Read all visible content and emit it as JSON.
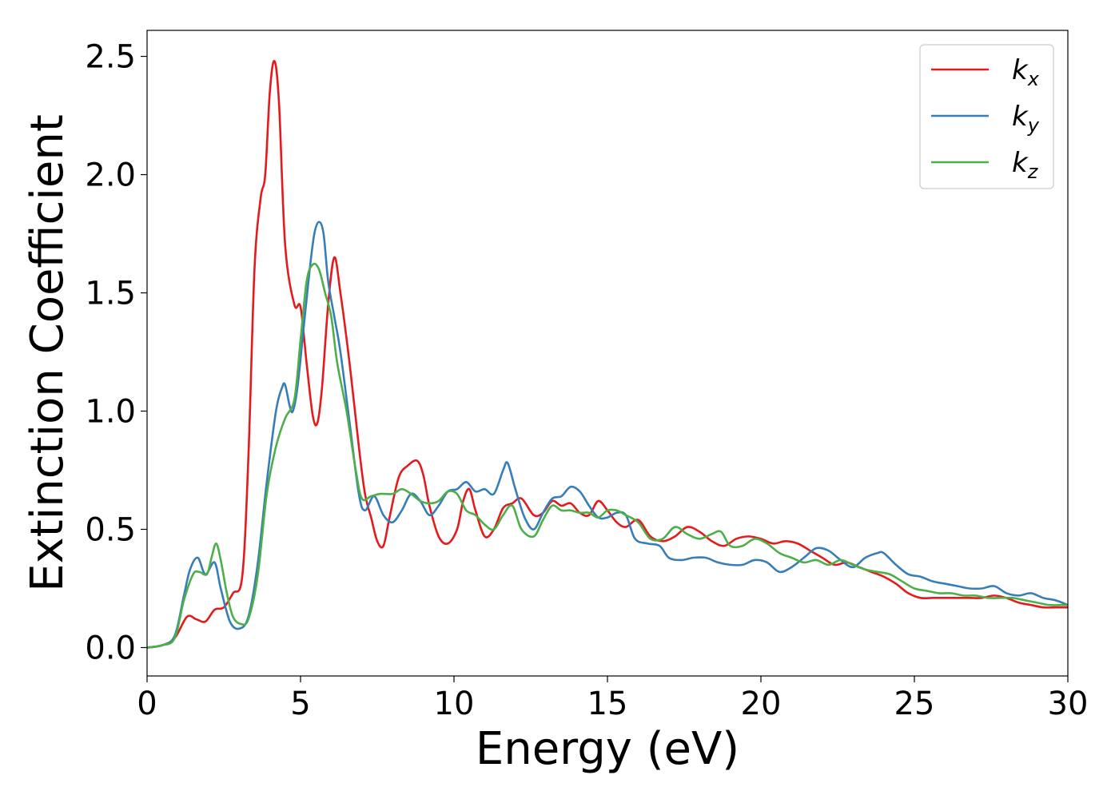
{
  "chart_data": {
    "type": "line",
    "title": "",
    "xlabel": "Energy (eV)",
    "ylabel": "Extinction Coefficient",
    "xlim": [
      0,
      30
    ],
    "ylim": [
      -0.12,
      2.61
    ],
    "xticks": [
      0,
      5,
      10,
      15,
      20,
      25,
      30
    ],
    "xtick_labels": [
      "0",
      "5",
      "10",
      "15",
      "20",
      "25",
      "30"
    ],
    "yticks": [
      0,
      0.5,
      1,
      1.5,
      2,
      2.5
    ],
    "ytick_labels": [
      "0.0",
      "0.5",
      "1.0",
      "1.5",
      "2.0",
      "2.5"
    ],
    "grid": false,
    "legend": {
      "placement": "top-right"
    },
    "series": [
      {
        "name": "kx",
        "label_base": "k",
        "label_sub": "x",
        "color": "#e41a1c",
        "points": [
          [
            0,
            0
          ],
          [
            0.5,
            0.01
          ],
          [
            0.9,
            0.04
          ],
          [
            1.3,
            0.13
          ],
          [
            1.6,
            0.12
          ],
          [
            1.9,
            0.11
          ],
          [
            2.2,
            0.16
          ],
          [
            2.5,
            0.17
          ],
          [
            2.8,
            0.23
          ],
          [
            3.1,
            0.3
          ],
          [
            3.3,
            0.8
          ],
          [
            3.5,
            1.6
          ],
          [
            3.7,
            1.9
          ],
          [
            3.85,
            2.0
          ],
          [
            4.0,
            2.35
          ],
          [
            4.15,
            2.48
          ],
          [
            4.3,
            2.3
          ],
          [
            4.5,
            1.7
          ],
          [
            4.8,
            1.45
          ],
          [
            5.0,
            1.44
          ],
          [
            5.2,
            1.2
          ],
          [
            5.4,
            0.98
          ],
          [
            5.55,
            0.95
          ],
          [
            5.7,
            1.1
          ],
          [
            5.9,
            1.45
          ],
          [
            6.1,
            1.65
          ],
          [
            6.3,
            1.5
          ],
          [
            6.6,
            1.2
          ],
          [
            6.9,
            0.85
          ],
          [
            7.1,
            0.65
          ],
          [
            7.3,
            0.55
          ],
          [
            7.5,
            0.45
          ],
          [
            7.7,
            0.43
          ],
          [
            7.9,
            0.55
          ],
          [
            8.2,
            0.72
          ],
          [
            8.5,
            0.77
          ],
          [
            8.8,
            0.79
          ],
          [
            9.0,
            0.73
          ],
          [
            9.2,
            0.6
          ],
          [
            9.5,
            0.47
          ],
          [
            9.8,
            0.44
          ],
          [
            10.1,
            0.5
          ],
          [
            10.3,
            0.62
          ],
          [
            10.5,
            0.67
          ],
          [
            10.7,
            0.58
          ],
          [
            11.0,
            0.47
          ],
          [
            11.3,
            0.5
          ],
          [
            11.6,
            0.59
          ],
          [
            11.9,
            0.61
          ],
          [
            12.2,
            0.63
          ],
          [
            12.6,
            0.56
          ],
          [
            12.9,
            0.57
          ],
          [
            13.2,
            0.62
          ],
          [
            13.5,
            0.6
          ],
          [
            13.8,
            0.61
          ],
          [
            14.1,
            0.57
          ],
          [
            14.4,
            0.56
          ],
          [
            14.7,
            0.62
          ],
          [
            15.0,
            0.58
          ],
          [
            15.3,
            0.53
          ],
          [
            15.6,
            0.51
          ],
          [
            16.0,
            0.54
          ],
          [
            16.4,
            0.47
          ],
          [
            16.8,
            0.45
          ],
          [
            17.2,
            0.47
          ],
          [
            17.6,
            0.51
          ],
          [
            18.0,
            0.49
          ],
          [
            18.4,
            0.45
          ],
          [
            18.8,
            0.43
          ],
          [
            19.2,
            0.46
          ],
          [
            19.6,
            0.47
          ],
          [
            20.0,
            0.46
          ],
          [
            20.4,
            0.44
          ],
          [
            20.8,
            0.45
          ],
          [
            21.2,
            0.44
          ],
          [
            21.6,
            0.41
          ],
          [
            22.0,
            0.38
          ],
          [
            22.4,
            0.35
          ],
          [
            22.8,
            0.36
          ],
          [
            23.2,
            0.34
          ],
          [
            23.6,
            0.32
          ],
          [
            24.0,
            0.3
          ],
          [
            24.4,
            0.27
          ],
          [
            24.8,
            0.23
          ],
          [
            25.2,
            0.21
          ],
          [
            25.6,
            0.21
          ],
          [
            26.0,
            0.21
          ],
          [
            26.4,
            0.21
          ],
          [
            26.8,
            0.21
          ],
          [
            27.2,
            0.21
          ],
          [
            27.6,
            0.22
          ],
          [
            28.0,
            0.21
          ],
          [
            28.4,
            0.19
          ],
          [
            28.8,
            0.18
          ],
          [
            29.2,
            0.17
          ],
          [
            29.6,
            0.17
          ],
          [
            30.0,
            0.17
          ]
        ]
      },
      {
        "name": "ky",
        "label_base": "k",
        "label_sub": "y",
        "color": "#377eb8",
        "points": [
          [
            0,
            0
          ],
          [
            0.5,
            0.01
          ],
          [
            0.9,
            0.05
          ],
          [
            1.2,
            0.22
          ],
          [
            1.4,
            0.33
          ],
          [
            1.65,
            0.38
          ],
          [
            1.9,
            0.31
          ],
          [
            2.2,
            0.36
          ],
          [
            2.4,
            0.25
          ],
          [
            2.7,
            0.11
          ],
          [
            3.0,
            0.08
          ],
          [
            3.3,
            0.13
          ],
          [
            3.6,
            0.35
          ],
          [
            3.9,
            0.7
          ],
          [
            4.2,
            1.0
          ],
          [
            4.4,
            1.1
          ],
          [
            4.5,
            1.11
          ],
          [
            4.65,
            1.02
          ],
          [
            4.75,
            1.0
          ],
          [
            4.9,
            1.1
          ],
          [
            5.1,
            1.35
          ],
          [
            5.3,
            1.6
          ],
          [
            5.45,
            1.75
          ],
          [
            5.6,
            1.8
          ],
          [
            5.75,
            1.75
          ],
          [
            5.9,
            1.55
          ],
          [
            6.1,
            1.4
          ],
          [
            6.3,
            1.25
          ],
          [
            6.6,
            0.95
          ],
          [
            6.9,
            0.65
          ],
          [
            7.1,
            0.58
          ],
          [
            7.4,
            0.64
          ],
          [
            7.7,
            0.56
          ],
          [
            8.0,
            0.53
          ],
          [
            8.3,
            0.58
          ],
          [
            8.6,
            0.65
          ],
          [
            8.9,
            0.62
          ],
          [
            9.2,
            0.56
          ],
          [
            9.5,
            0.6
          ],
          [
            9.8,
            0.66
          ],
          [
            10.1,
            0.67
          ],
          [
            10.4,
            0.7
          ],
          [
            10.7,
            0.66
          ],
          [
            11.0,
            0.67
          ],
          [
            11.3,
            0.65
          ],
          [
            11.6,
            0.75
          ],
          [
            11.75,
            0.78
          ],
          [
            12.0,
            0.67
          ],
          [
            12.3,
            0.55
          ],
          [
            12.6,
            0.5
          ],
          [
            12.9,
            0.57
          ],
          [
            13.2,
            0.63
          ],
          [
            13.5,
            0.64
          ],
          [
            13.8,
            0.68
          ],
          [
            14.1,
            0.66
          ],
          [
            14.4,
            0.6
          ],
          [
            14.7,
            0.55
          ],
          [
            15.0,
            0.55
          ],
          [
            15.3,
            0.57
          ],
          [
            15.6,
            0.56
          ],
          [
            15.9,
            0.46
          ],
          [
            16.3,
            0.44
          ],
          [
            16.7,
            0.43
          ],
          [
            17.0,
            0.38
          ],
          [
            17.4,
            0.37
          ],
          [
            17.8,
            0.38
          ],
          [
            18.2,
            0.38
          ],
          [
            18.6,
            0.36
          ],
          [
            19.0,
            0.35
          ],
          [
            19.4,
            0.35
          ],
          [
            19.8,
            0.37
          ],
          [
            20.2,
            0.36
          ],
          [
            20.6,
            0.32
          ],
          [
            21.0,
            0.34
          ],
          [
            21.4,
            0.38
          ],
          [
            21.8,
            0.42
          ],
          [
            22.2,
            0.41
          ],
          [
            22.6,
            0.37
          ],
          [
            23.0,
            0.34
          ],
          [
            23.4,
            0.38
          ],
          [
            23.8,
            0.4
          ],
          [
            24.0,
            0.4
          ],
          [
            24.4,
            0.35
          ],
          [
            24.8,
            0.31
          ],
          [
            25.2,
            0.3
          ],
          [
            25.6,
            0.28
          ],
          [
            26.0,
            0.27
          ],
          [
            26.4,
            0.26
          ],
          [
            26.8,
            0.25
          ],
          [
            27.2,
            0.25
          ],
          [
            27.6,
            0.26
          ],
          [
            28.0,
            0.23
          ],
          [
            28.4,
            0.22
          ],
          [
            28.8,
            0.23
          ],
          [
            29.2,
            0.21
          ],
          [
            29.6,
            0.2
          ],
          [
            30.0,
            0.18
          ]
        ]
      },
      {
        "name": "kz",
        "label_base": "k",
        "label_sub": "z",
        "color": "#4daf4a",
        "points": [
          [
            0,
            0
          ],
          [
            0.5,
            0.01
          ],
          [
            0.9,
            0.04
          ],
          [
            1.2,
            0.2
          ],
          [
            1.5,
            0.31
          ],
          [
            1.7,
            0.32
          ],
          [
            1.95,
            0.31
          ],
          [
            2.1,
            0.38
          ],
          [
            2.25,
            0.44
          ],
          [
            2.4,
            0.37
          ],
          [
            2.6,
            0.23
          ],
          [
            2.8,
            0.13
          ],
          [
            3.05,
            0.1
          ],
          [
            3.3,
            0.12
          ],
          [
            3.6,
            0.3
          ],
          [
            3.9,
            0.65
          ],
          [
            4.2,
            0.85
          ],
          [
            4.5,
            0.97
          ],
          [
            4.8,
            1.05
          ],
          [
            5.0,
            1.3
          ],
          [
            5.2,
            1.55
          ],
          [
            5.4,
            1.62
          ],
          [
            5.6,
            1.6
          ],
          [
            5.8,
            1.5
          ],
          [
            6.0,
            1.4
          ],
          [
            6.2,
            1.2
          ],
          [
            6.5,
            1.0
          ],
          [
            6.8,
            0.75
          ],
          [
            7.0,
            0.63
          ],
          [
            7.3,
            0.64
          ],
          [
            7.6,
            0.65
          ],
          [
            8.0,
            0.65
          ],
          [
            8.3,
            0.67
          ],
          [
            8.6,
            0.65
          ],
          [
            8.9,
            0.62
          ],
          [
            9.2,
            0.61
          ],
          [
            9.5,
            0.62
          ],
          [
            9.8,
            0.66
          ],
          [
            10.1,
            0.65
          ],
          [
            10.4,
            0.58
          ],
          [
            10.7,
            0.56
          ],
          [
            11.0,
            0.52
          ],
          [
            11.3,
            0.5
          ],
          [
            11.6,
            0.56
          ],
          [
            11.9,
            0.6
          ],
          [
            12.2,
            0.5
          ],
          [
            12.6,
            0.47
          ],
          [
            12.9,
            0.54
          ],
          [
            13.2,
            0.6
          ],
          [
            13.5,
            0.58
          ],
          [
            13.8,
            0.58
          ],
          [
            14.1,
            0.57
          ],
          [
            14.4,
            0.57
          ],
          [
            14.7,
            0.55
          ],
          [
            15.0,
            0.58
          ],
          [
            15.3,
            0.58
          ],
          [
            15.6,
            0.56
          ],
          [
            16.0,
            0.53
          ],
          [
            16.4,
            0.46
          ],
          [
            16.8,
            0.46
          ],
          [
            17.2,
            0.51
          ],
          [
            17.6,
            0.48
          ],
          [
            18.0,
            0.46
          ],
          [
            18.4,
            0.48
          ],
          [
            18.7,
            0.49
          ],
          [
            19.0,
            0.43
          ],
          [
            19.4,
            0.43
          ],
          [
            19.8,
            0.46
          ],
          [
            20.2,
            0.44
          ],
          [
            20.6,
            0.4
          ],
          [
            21.0,
            0.38
          ],
          [
            21.4,
            0.36
          ],
          [
            21.8,
            0.37
          ],
          [
            22.2,
            0.35
          ],
          [
            22.6,
            0.37
          ],
          [
            23.0,
            0.35
          ],
          [
            23.4,
            0.33
          ],
          [
            23.8,
            0.32
          ],
          [
            24.2,
            0.31
          ],
          [
            24.6,
            0.28
          ],
          [
            25.0,
            0.25
          ],
          [
            25.4,
            0.24
          ],
          [
            25.8,
            0.23
          ],
          [
            26.2,
            0.23
          ],
          [
            26.6,
            0.22
          ],
          [
            27.0,
            0.22
          ],
          [
            27.4,
            0.21
          ],
          [
            27.8,
            0.21
          ],
          [
            28.2,
            0.21
          ],
          [
            28.6,
            0.2
          ],
          [
            29.0,
            0.19
          ],
          [
            29.4,
            0.18
          ],
          [
            29.8,
            0.18
          ],
          [
            30.0,
            0.18
          ]
        ]
      }
    ]
  }
}
